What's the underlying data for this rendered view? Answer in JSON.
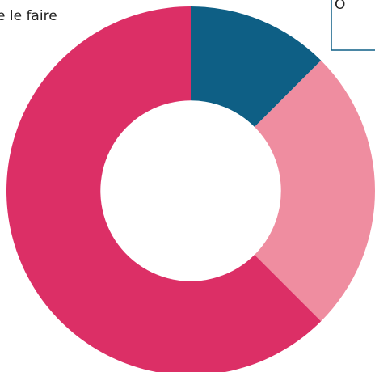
{
  "chart_data": {
    "type": "pie",
    "categories": [
      null,
      null,
      null
    ],
    "values": [
      12.5,
      25,
      62.5
    ],
    "colors": [
      "#0e5f85",
      "#ef8da0",
      "#dc2f66"
    ],
    "hole": 0.49,
    "annotations": [
      "e le faire",
      "O"
    ]
  }
}
